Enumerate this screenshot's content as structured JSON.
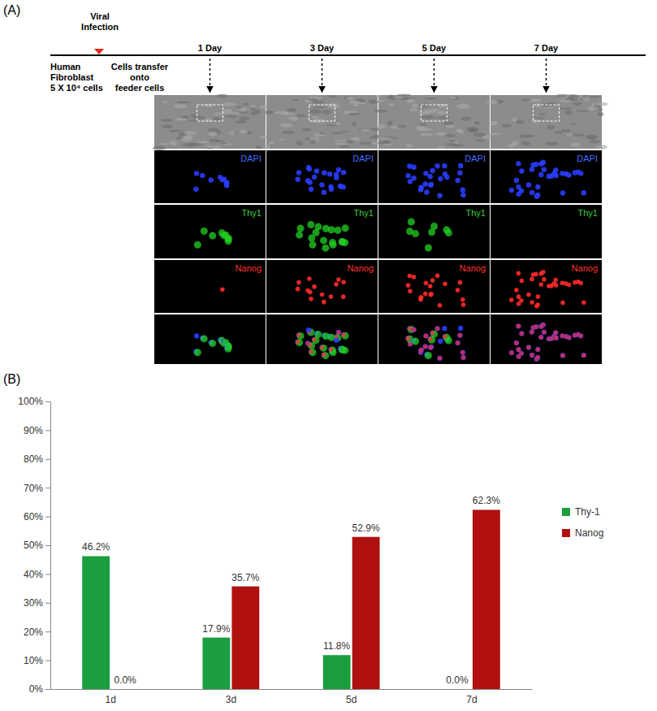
{
  "panel_a": {
    "label": "(A)",
    "infection": [
      "Viral",
      "Infection"
    ],
    "start": [
      "Human",
      "Fibroblast",
      "5 X 10⁴ cells"
    ],
    "transfer": [
      "Cells transfer",
      "onto",
      "feeder cells"
    ],
    "days": [
      "1 Day",
      "3 Day",
      "5 Day",
      "7 Day"
    ],
    "channels": [
      "DAPI",
      "Thy1",
      "Nanog"
    ]
  },
  "panel_b": {
    "label": "(B)"
  },
  "chart_data": {
    "type": "bar",
    "categories": [
      "1d",
      "3d",
      "5d",
      "7d"
    ],
    "series": [
      {
        "name": "Thy-1",
        "color": "#1a9e3f",
        "values": [
          46.2,
          17.9,
          11.8,
          0.0
        ],
        "value_labels": [
          "46.2%",
          "17.9%",
          "11.8%",
          "0.0%"
        ]
      },
      {
        "name": "Nanog",
        "color": "#b01010",
        "values": [
          0.0,
          35.7,
          52.9,
          62.3
        ],
        "value_labels": [
          "0.0%",
          "35.7%",
          "52.9%",
          "62.3%"
        ]
      }
    ],
    "ylim": [
      0,
      100
    ],
    "yticks": [
      {
        "value": 0,
        "label": "0%"
      },
      {
        "value": 10,
        "label": "10%"
      },
      {
        "value": 20,
        "label": "20%"
      },
      {
        "value": 30,
        "label": "30%"
      },
      {
        "value": 40,
        "label": "40%"
      },
      {
        "value": 50,
        "label": "50%"
      },
      {
        "value": 60,
        "label": "60%"
      },
      {
        "value": 70,
        "label": "70%"
      },
      {
        "value": 80,
        "label": "80%"
      },
      {
        "value": 90,
        "label": "90%"
      },
      {
        "value": 100,
        "label": "100%"
      }
    ],
    "grid": false,
    "legend": "right",
    "data_labels": true
  }
}
